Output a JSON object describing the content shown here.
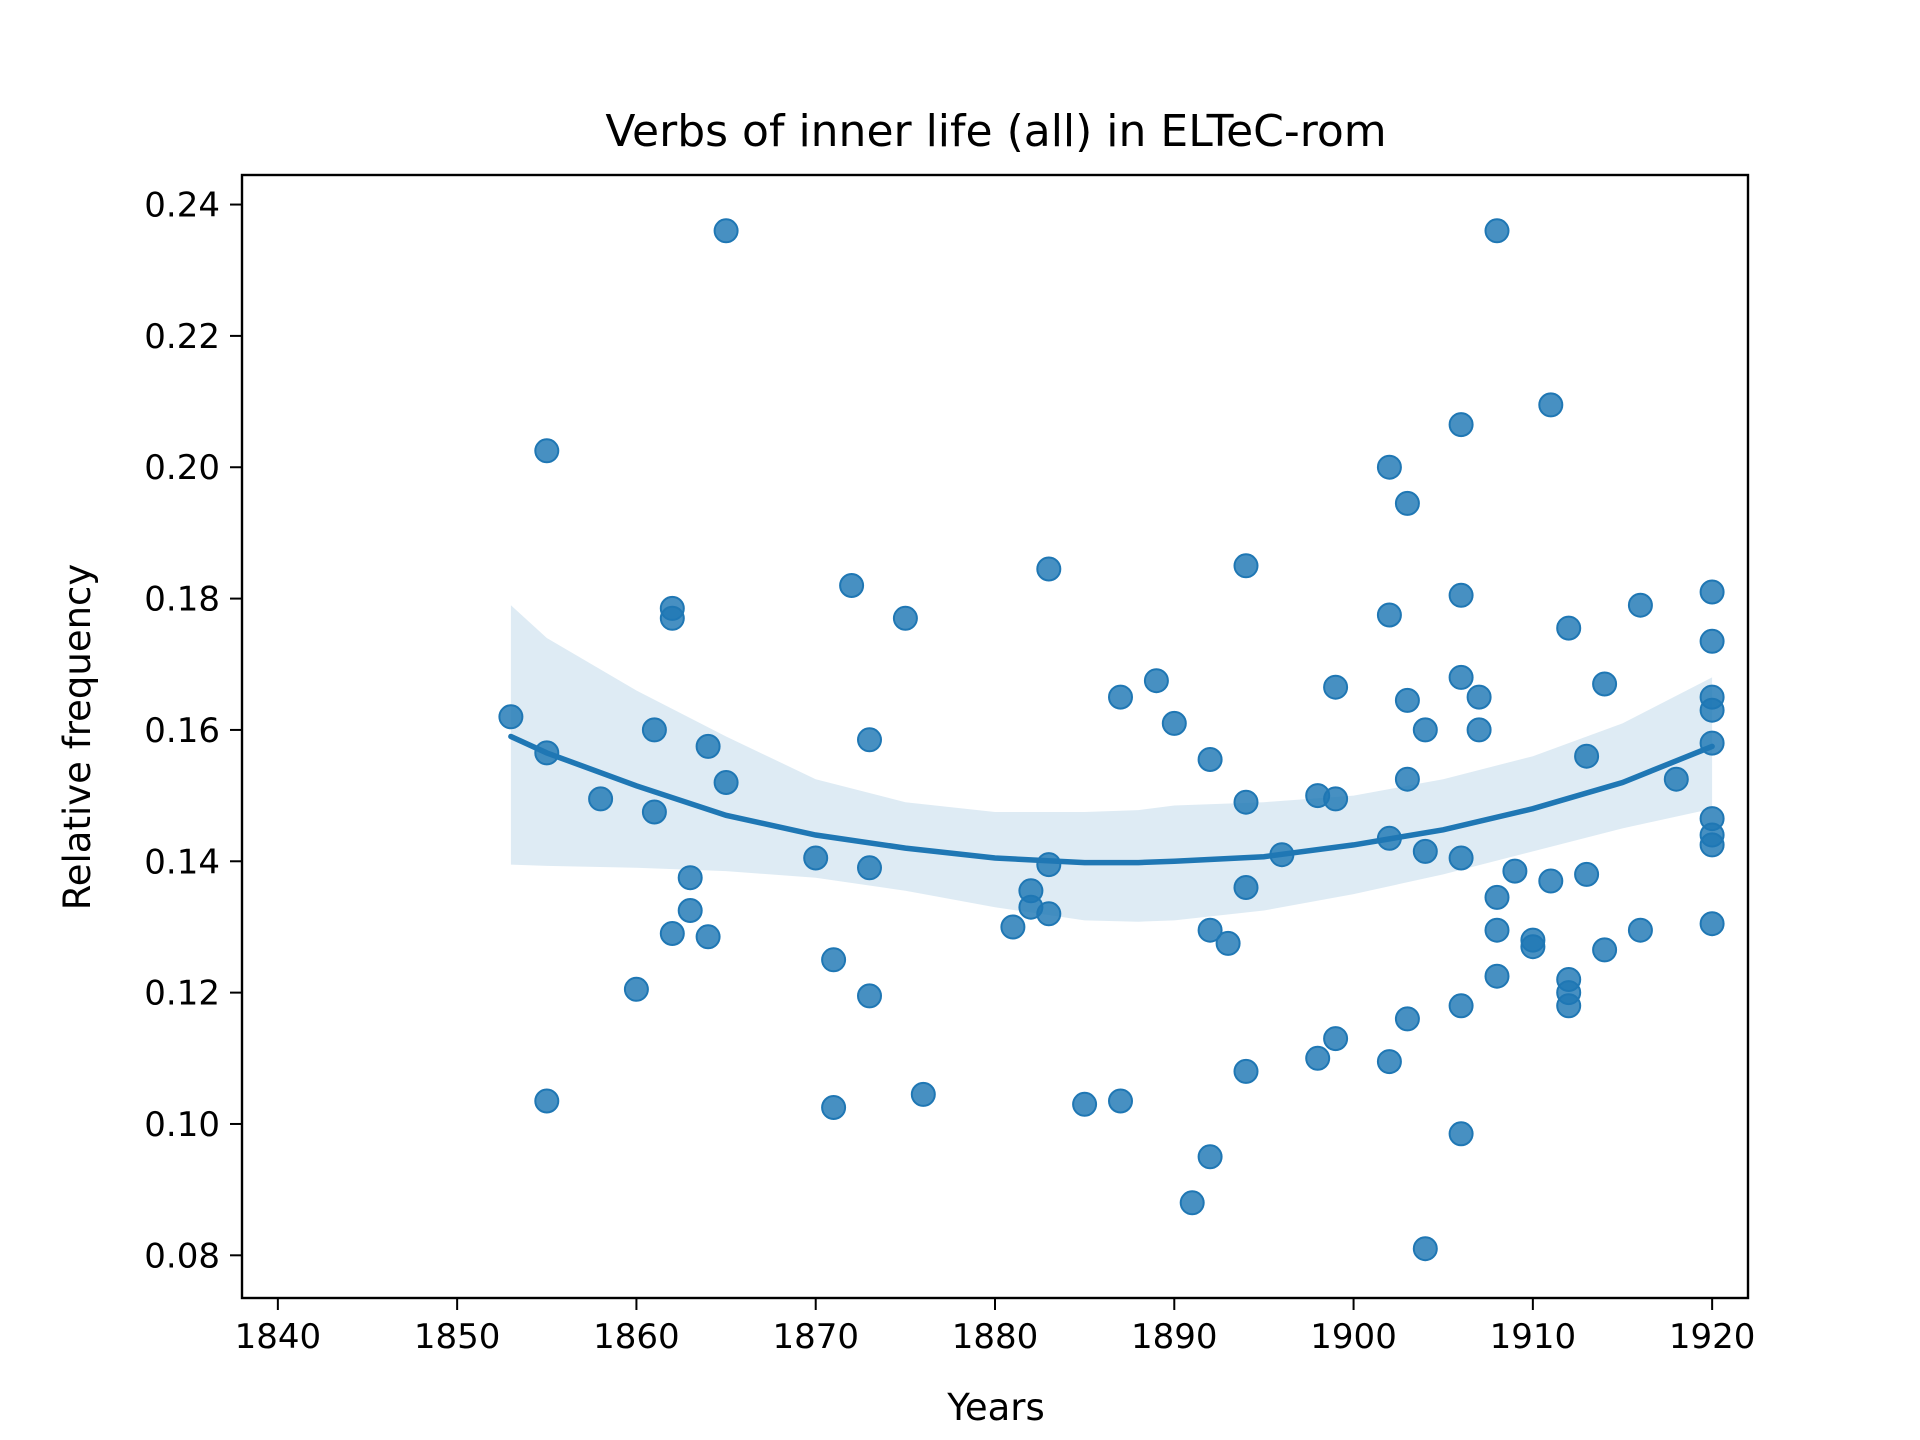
{
  "chart_data": {
    "type": "scatter",
    "title": "Verbs of inner life (all) in ELTeC-rom",
    "xlabel": "Years",
    "ylabel": "Relative frequency",
    "xlim": [
      1838,
      1922
    ],
    "ylim": [
      0.0735,
      0.2445
    ],
    "xticks": [
      1840,
      1850,
      1860,
      1870,
      1880,
      1890,
      1900,
      1910,
      1920
    ],
    "yticks": [
      0.08,
      0.1,
      0.12,
      0.14,
      0.16,
      0.18,
      0.2,
      0.22,
      0.24
    ],
    "xtick_labels": [
      "1840",
      "1850",
      "1860",
      "1870",
      "1880",
      "1890",
      "1900",
      "1910",
      "1920"
    ],
    "ytick_labels": [
      "0.08",
      "0.10",
      "0.12",
      "0.14",
      "0.16",
      "0.18",
      "0.20",
      "0.22",
      "0.24"
    ],
    "grid": false,
    "colors": {
      "points": "#1f77b4",
      "fit": "#1f77b4",
      "band": "#1f77b4"
    },
    "points": [
      [
        1853,
        0.162
      ],
      [
        1855,
        0.2025
      ],
      [
        1855,
        0.1565
      ],
      [
        1855,
        0.1035
      ],
      [
        1858,
        0.1495
      ],
      [
        1860,
        0.1205
      ],
      [
        1861,
        0.16
      ],
      [
        1861,
        0.1475
      ],
      [
        1862,
        0.1785
      ],
      [
        1862,
        0.177
      ],
      [
        1862,
        0.129
      ],
      [
        1863,
        0.1375
      ],
      [
        1863,
        0.1325
      ],
      [
        1864,
        0.1575
      ],
      [
        1864,
        0.1285
      ],
      [
        1865,
        0.236
      ],
      [
        1865,
        0.152
      ],
      [
        1870,
        0.1405
      ],
      [
        1871,
        0.125
      ],
      [
        1871,
        0.1025
      ],
      [
        1872,
        0.182
      ],
      [
        1873,
        0.1585
      ],
      [
        1873,
        0.139
      ],
      [
        1873,
        0.1195
      ],
      [
        1875,
        0.177
      ],
      [
        1876,
        0.1045
      ],
      [
        1881,
        0.13
      ],
      [
        1882,
        0.1355
      ],
      [
        1882,
        0.133
      ],
      [
        1883,
        0.1845
      ],
      [
        1883,
        0.1395
      ],
      [
        1883,
        0.132
      ],
      [
        1885,
        0.103
      ],
      [
        1887,
        0.165
      ],
      [
        1887,
        0.1035
      ],
      [
        1889,
        0.1675
      ],
      [
        1890,
        0.161
      ],
      [
        1891,
        0.088
      ],
      [
        1892,
        0.1555
      ],
      [
        1892,
        0.1295
      ],
      [
        1892,
        0.095
      ],
      [
        1893,
        0.1275
      ],
      [
        1894,
        0.185
      ],
      [
        1894,
        0.149
      ],
      [
        1894,
        0.136
      ],
      [
        1894,
        0.108
      ],
      [
        1896,
        0.141
      ],
      [
        1898,
        0.15
      ],
      [
        1898,
        0.11
      ],
      [
        1899,
        0.1665
      ],
      [
        1899,
        0.1495
      ],
      [
        1899,
        0.113
      ],
      [
        1902,
        0.2
      ],
      [
        1902,
        0.1775
      ],
      [
        1902,
        0.1435
      ],
      [
        1902,
        0.1095
      ],
      [
        1903,
        0.1945
      ],
      [
        1903,
        0.1645
      ],
      [
        1903,
        0.1525
      ],
      [
        1903,
        0.116
      ],
      [
        1904,
        0.16
      ],
      [
        1904,
        0.1415
      ],
      [
        1904,
        0.081
      ],
      [
        1906,
        0.2065
      ],
      [
        1906,
        0.1805
      ],
      [
        1906,
        0.168
      ],
      [
        1906,
        0.1405
      ],
      [
        1906,
        0.118
      ],
      [
        1906,
        0.0985
      ],
      [
        1907,
        0.165
      ],
      [
        1907,
        0.16
      ],
      [
        1908,
        0.236
      ],
      [
        1908,
        0.1345
      ],
      [
        1908,
        0.1295
      ],
      [
        1908,
        0.1225
      ],
      [
        1909,
        0.1385
      ],
      [
        1910,
        0.128
      ],
      [
        1910,
        0.127
      ],
      [
        1911,
        0.2095
      ],
      [
        1911,
        0.137
      ],
      [
        1912,
        0.1755
      ],
      [
        1912,
        0.122
      ],
      [
        1912,
        0.12
      ],
      [
        1912,
        0.118
      ],
      [
        1913,
        0.156
      ],
      [
        1913,
        0.138
      ],
      [
        1914,
        0.167
      ],
      [
        1914,
        0.1265
      ],
      [
        1916,
        0.179
      ],
      [
        1916,
        0.1295
      ],
      [
        1918,
        0.1525
      ],
      [
        1920,
        0.181
      ],
      [
        1920,
        0.1735
      ],
      [
        1920,
        0.165
      ],
      [
        1920,
        0.163
      ],
      [
        1920,
        0.158
      ],
      [
        1920,
        0.1465
      ],
      [
        1920,
        0.144
      ],
      [
        1920,
        0.1425
      ],
      [
        1920,
        0.1305
      ]
    ],
    "fit": {
      "x": [
        1853,
        1855,
        1860,
        1865,
        1870,
        1875,
        1880,
        1885,
        1888,
        1890,
        1895,
        1900,
        1905,
        1910,
        1915,
        1920
      ],
      "y": [
        0.159,
        0.1565,
        0.1515,
        0.147,
        0.144,
        0.142,
        0.1405,
        0.1398,
        0.1398,
        0.14,
        0.1407,
        0.1425,
        0.1448,
        0.148,
        0.152,
        0.1575
      ],
      "lower": [
        0.1395,
        0.1393,
        0.139,
        0.1385,
        0.1375,
        0.1355,
        0.133,
        0.131,
        0.1308,
        0.131,
        0.1325,
        0.135,
        0.138,
        0.1415,
        0.145,
        0.148
      ],
      "upper": [
        0.179,
        0.174,
        0.166,
        0.159,
        0.1525,
        0.149,
        0.1475,
        0.1475,
        0.1478,
        0.1485,
        0.149,
        0.15,
        0.1525,
        0.156,
        0.161,
        0.168
      ]
    }
  }
}
